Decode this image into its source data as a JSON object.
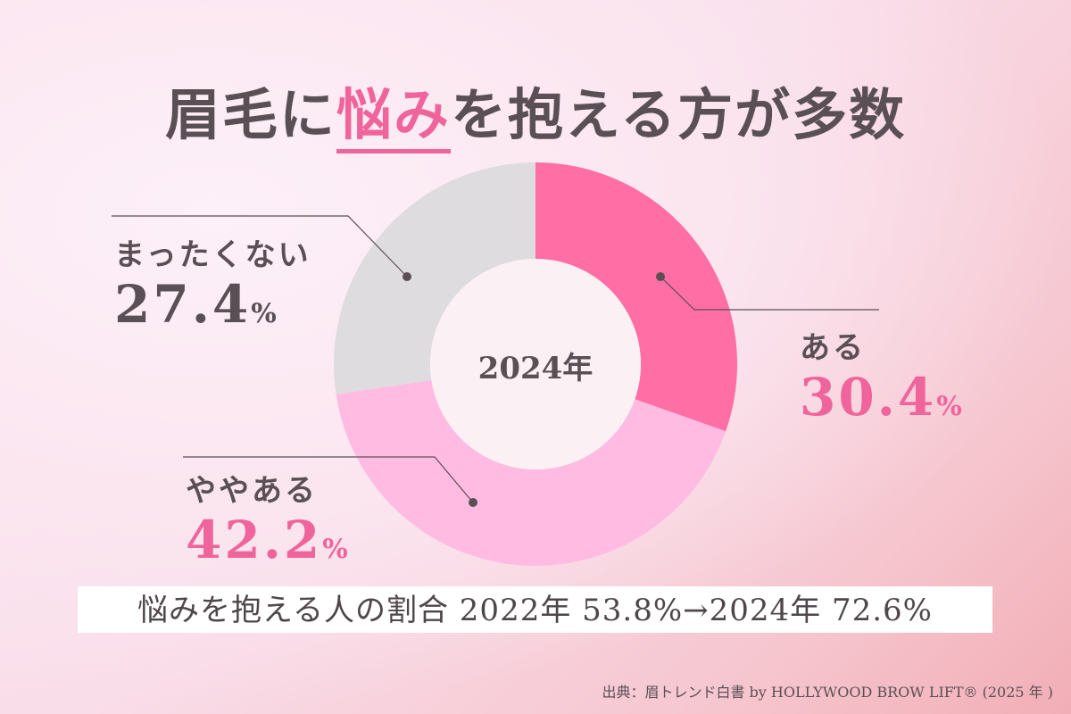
{
  "title": {
    "before": "眉毛に",
    "highlight": "悩み",
    "after": "を抱える方が多数"
  },
  "chart_data": {
    "type": "pie",
    "donut": true,
    "center_label": "2024年",
    "start": "top, clockwise",
    "slices": [
      {
        "label": "ある",
        "value": 30.4,
        "color": "#ff6ea5"
      },
      {
        "label": "ややある",
        "value": 42.2,
        "color": "#ffbbe2"
      },
      {
        "label": "まったくない",
        "value": 27.4,
        "color": "#dfdcdf"
      }
    ],
    "unit": "%"
  },
  "labels": [
    {
      "name": "ある",
      "value": "30.4",
      "unit": "%",
      "color": "#f0649c"
    },
    {
      "name": "ややある",
      "value": "42.2",
      "unit": "%",
      "color": "#f0649c"
    },
    {
      "name": "まったくない",
      "value": "27.4",
      "unit": "%",
      "color": "#5a4f55"
    }
  ],
  "banner": "悩みを抱える人の割合  2022年 53.8%→2024年 72.6%",
  "source": "出典：眉トレンド白書 by HOLLYWOOD BROW LIFT® (2025 年 )"
}
